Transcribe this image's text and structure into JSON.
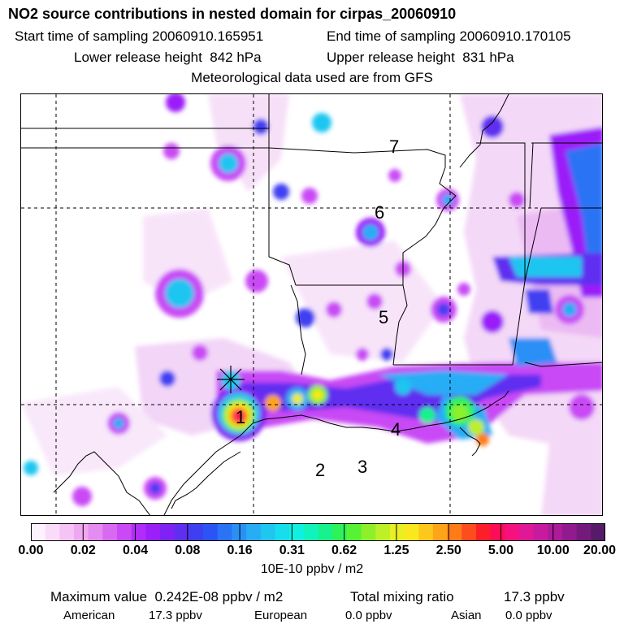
{
  "header": {
    "title": "NO2 source contributions in nested domain for cirpas_20060910",
    "start_label": "Start time of sampling 20060910.165951",
    "end_label": "End time of sampling 20060910.170105",
    "lower_label": "Lower release height  842 hPa",
    "upper_label": "Upper release height  831 hPa",
    "met_label": "Meteorological data used are from GFS"
  },
  "map": {
    "markers": [
      "1",
      "2",
      "3",
      "4",
      "5",
      "6",
      "7"
    ],
    "background": "#ffffff",
    "line_color": "#000000"
  },
  "colorbar": {
    "ticks": [
      "0.00",
      "0.02",
      "0.04",
      "0.08",
      "0.16",
      "0.31",
      "0.62",
      "1.25",
      "2.50",
      "5.00",
      "10.00",
      "20.00"
    ],
    "colors": [
      "#fdf2fd",
      "#fadcfa",
      "#f5c3f5",
      "#eea8f0",
      "#e58cf0",
      "#d86af2",
      "#c94af5",
      "#b12df7",
      "#9b1ff8",
      "#7f22f4",
      "#5f2ff0",
      "#3f3ff2",
      "#2a55f4",
      "#2a73f5",
      "#2a90f6",
      "#26adf6",
      "#1fc6f0",
      "#17ddec",
      "#0ff0e0",
      "#10f3bd",
      "#18f28c",
      "#2ef25a",
      "#58f235",
      "#8df02a",
      "#bdf026",
      "#e8f023",
      "#fae81f",
      "#fdc81b",
      "#fda418",
      "#fd7c18",
      "#fd4d1d",
      "#fd1e2c",
      "#fd0d58",
      "#f5127e",
      "#e01898",
      "#c71a9f",
      "#ad1a9a",
      "#901a8e",
      "#731a7c",
      "#561a68"
    ],
    "units": "10E-10 ppbv / m2"
  },
  "footer": {
    "max_label": "Maximum value  0.242E-08 ppbv / m2",
    "total_label": "Total mixing ratio",
    "total_value": "17.3 ppbv",
    "american_label": "American",
    "american_value": "17.3 ppbv",
    "european_label": "European",
    "european_value": "0.0 ppbv",
    "asian_label": "Asian",
    "asian_value": "0.0 ppbv"
  }
}
